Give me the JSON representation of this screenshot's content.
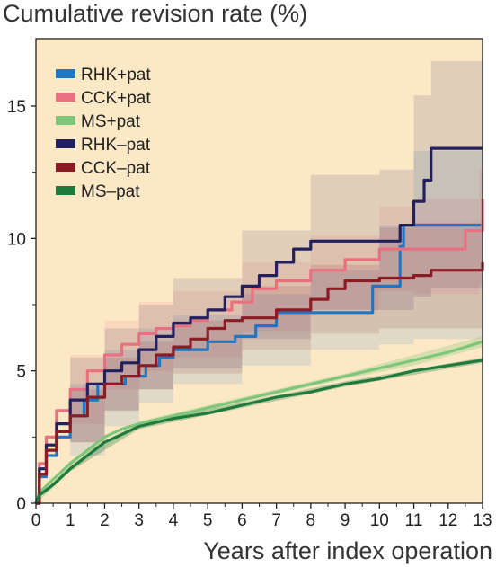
{
  "chart_data": {
    "type": "line",
    "title": "",
    "ylabel": "Cumulative revision rate (%)",
    "xlabel": "Years after index operation",
    "xlim": [
      0,
      13
    ],
    "ylim": [
      0,
      15
    ],
    "x_ticks": [
      "0",
      "1",
      "2",
      "3",
      "4",
      "5",
      "6",
      "7",
      "8",
      "9",
      "10",
      "11",
      "12",
      "13"
    ],
    "y_ticks": [
      "0",
      "5",
      "10",
      "15"
    ],
    "grid": false,
    "legend_position": "top-left",
    "background_color": "#fde8c6",
    "series": [
      {
        "name": "RHK+pat",
        "color": "#1f77c4",
        "step": true,
        "points": [
          [
            0,
            0
          ],
          [
            0.1,
            1
          ],
          [
            0.3,
            1.8
          ],
          [
            0.6,
            2.5
          ],
          [
            1.0,
            3.3
          ],
          [
            1.4,
            3.9
          ],
          [
            1.8,
            4.5
          ],
          [
            2.5,
            4.5
          ],
          [
            2.6,
            4.8
          ],
          [
            3.2,
            5.2
          ],
          [
            3.6,
            5.5
          ],
          [
            4.0,
            5.8
          ],
          [
            5.0,
            6.1
          ],
          [
            5.8,
            6.3
          ],
          [
            6.4,
            6.7
          ],
          [
            7.0,
            7.2
          ],
          [
            9.7,
            7.2
          ],
          [
            9.8,
            8.2
          ],
          [
            10.6,
            9.7
          ],
          [
            10.7,
            10.5
          ],
          [
            13,
            10.5
          ]
        ],
        "ci_lower": [
          [
            0,
            0
          ],
          [
            1,
            1.8
          ],
          [
            2,
            2.9
          ],
          [
            3,
            3.8
          ],
          [
            4,
            4.5
          ],
          [
            6,
            5.2
          ],
          [
            8,
            5.8
          ],
          [
            10,
            6.0
          ],
          [
            11,
            6.2
          ],
          [
            13,
            6.2
          ]
        ],
        "ci_upper": [
          [
            0,
            0
          ],
          [
            1,
            4.5
          ],
          [
            2,
            5.8
          ],
          [
            3,
            6.6
          ],
          [
            4,
            7.1
          ],
          [
            6,
            7.9
          ],
          [
            8,
            8.8
          ],
          [
            10,
            10.5
          ],
          [
            11,
            13.3
          ],
          [
            13,
            13.3
          ]
        ]
      },
      {
        "name": "CCK+pat",
        "color": "#e8707f",
        "step": true,
        "points": [
          [
            0,
            0
          ],
          [
            0.1,
            1.5
          ],
          [
            0.3,
            2.5
          ],
          [
            0.6,
            3.5
          ],
          [
            1.0,
            4.3
          ],
          [
            1.5,
            5.0
          ],
          [
            2.0,
            5.6
          ],
          [
            2.5,
            6.0
          ],
          [
            3.0,
            6.4
          ],
          [
            3.5,
            6.6
          ],
          [
            4.0,
            6.7
          ],
          [
            4.5,
            6.9
          ],
          [
            5.0,
            7.3
          ],
          [
            5.7,
            7.6
          ],
          [
            6.3,
            8.1
          ],
          [
            7.0,
            8.4
          ],
          [
            8.0,
            8.8
          ],
          [
            9.0,
            9.2
          ],
          [
            10.0,
            9.6
          ],
          [
            11.0,
            9.6
          ],
          [
            12.5,
            10.3
          ],
          [
            12.9,
            10.3
          ],
          [
            13,
            11.5
          ]
        ],
        "ci_lower": [
          [
            0,
            0
          ],
          [
            1,
            3.0
          ],
          [
            2,
            4.3
          ],
          [
            3,
            5.0
          ],
          [
            4,
            5.5
          ],
          [
            6,
            6.5
          ],
          [
            8,
            7.3
          ],
          [
            10,
            8.0
          ],
          [
            11,
            7.9
          ],
          [
            12.9,
            8.3
          ],
          [
            13,
            8.3
          ]
        ],
        "ci_upper": [
          [
            0,
            0
          ],
          [
            1,
            5.6
          ],
          [
            2,
            6.9
          ],
          [
            3,
            7.6
          ],
          [
            4,
            8.0
          ],
          [
            6,
            9.1
          ],
          [
            8,
            10.1
          ],
          [
            10,
            11.2
          ],
          [
            11,
            11.5
          ],
          [
            12.9,
            12.6
          ],
          [
            13,
            12.6
          ]
        ]
      },
      {
        "name": "MS+pat",
        "color": "#7dc67a",
        "step": false,
        "points": [
          [
            0,
            0
          ],
          [
            0.1,
            0.4
          ],
          [
            0.5,
            0.9
          ],
          [
            1.0,
            1.5
          ],
          [
            1.5,
            2.0
          ],
          [
            2.0,
            2.5
          ],
          [
            2.5,
            2.8
          ],
          [
            3.0,
            3.0
          ],
          [
            4.0,
            3.3
          ],
          [
            5.0,
            3.6
          ],
          [
            6.0,
            3.9
          ],
          [
            7.0,
            4.2
          ],
          [
            8.0,
            4.5
          ],
          [
            9.0,
            4.8
          ],
          [
            10.0,
            5.1
          ],
          [
            11.0,
            5.4
          ],
          [
            12.0,
            5.7
          ],
          [
            13.0,
            6.1
          ]
        ],
        "ci_lower": [
          [
            0,
            0
          ],
          [
            1,
            1.4
          ],
          [
            3,
            2.9
          ],
          [
            6,
            3.8
          ],
          [
            9,
            4.7
          ],
          [
            11,
            5.2
          ],
          [
            13,
            5.9
          ]
        ],
        "ci_upper": [
          [
            0,
            0
          ],
          [
            1,
            1.6
          ],
          [
            3,
            3.1
          ],
          [
            6,
            4.0
          ],
          [
            9,
            4.9
          ],
          [
            11,
            5.6
          ],
          [
            13,
            6.3
          ]
        ]
      },
      {
        "name": "RHK–pat",
        "color": "#23205f",
        "step": true,
        "points": [
          [
            0,
            0
          ],
          [
            0.1,
            1.3
          ],
          [
            0.3,
            2.2
          ],
          [
            0.6,
            3.0
          ],
          [
            1.0,
            3.9
          ],
          [
            1.5,
            4.5
          ],
          [
            2.0,
            5.0
          ],
          [
            2.5,
            5.3
          ],
          [
            3.0,
            5.8
          ],
          [
            3.5,
            6.3
          ],
          [
            4.0,
            6.8
          ],
          [
            4.5,
            7.0
          ],
          [
            5.0,
            7.3
          ],
          [
            5.5,
            7.8
          ],
          [
            6.0,
            8.2
          ],
          [
            6.5,
            8.6
          ],
          [
            7.0,
            9.1
          ],
          [
            7.5,
            9.6
          ],
          [
            8.0,
            9.9
          ],
          [
            10.0,
            9.9
          ],
          [
            10.6,
            10.5
          ],
          [
            11.0,
            11.4
          ],
          [
            11.3,
            12.2
          ],
          [
            11.5,
            13.4
          ],
          [
            13,
            13.4
          ]
        ],
        "ci_lower": [
          [
            0,
            0
          ],
          [
            1,
            2.3
          ],
          [
            2,
            3.5
          ],
          [
            3,
            4.3
          ],
          [
            4,
            5.1
          ],
          [
            6,
            6.2
          ],
          [
            8,
            7.3
          ],
          [
            10,
            7.3
          ],
          [
            11,
            7.8
          ],
          [
            11.5,
            8.1
          ],
          [
            13,
            8.1
          ]
        ],
        "ci_upper": [
          [
            0,
            0
          ],
          [
            1,
            5.5
          ],
          [
            2,
            6.6
          ],
          [
            3,
            7.5
          ],
          [
            4,
            8.5
          ],
          [
            6,
            10.3
          ],
          [
            8,
            12.4
          ],
          [
            10,
            12.6
          ],
          [
            11,
            15.4
          ],
          [
            11.5,
            16.7
          ],
          [
            13,
            16.7
          ]
        ]
      },
      {
        "name": "CCK–pat",
        "color": "#8b1c24",
        "step": true,
        "points": [
          [
            0,
            0
          ],
          [
            0.1,
            1.1
          ],
          [
            0.3,
            2.0
          ],
          [
            0.6,
            2.7
          ],
          [
            1.0,
            3.3
          ],
          [
            1.5,
            4.0
          ],
          [
            2.0,
            4.5
          ],
          [
            2.5,
            4.8
          ],
          [
            3.0,
            5.2
          ],
          [
            3.5,
            5.6
          ],
          [
            4.0,
            5.9
          ],
          [
            4.5,
            6.2
          ],
          [
            5.0,
            6.6
          ],
          [
            5.5,
            6.9
          ],
          [
            6.0,
            7.0
          ],
          [
            7.0,
            7.3
          ],
          [
            8.0,
            7.7
          ],
          [
            8.5,
            8.1
          ],
          [
            9.0,
            8.4
          ],
          [
            10.0,
            8.5
          ],
          [
            11.0,
            8.6
          ],
          [
            11.5,
            8.8
          ],
          [
            12.9,
            8.8
          ],
          [
            13,
            9.1
          ]
        ],
        "ci_lower": [
          [
            0,
            0
          ],
          [
            1,
            2.3
          ],
          [
            2,
            3.5
          ],
          [
            3,
            4.3
          ],
          [
            4,
            4.9
          ],
          [
            6,
            5.8
          ],
          [
            8,
            6.4
          ],
          [
            10,
            6.6
          ],
          [
            11,
            6.6
          ],
          [
            13,
            6.9
          ]
        ],
        "ci_upper": [
          [
            0,
            0
          ],
          [
            1,
            4.3
          ],
          [
            2,
            5.5
          ],
          [
            3,
            6.1
          ],
          [
            4,
            6.9
          ],
          [
            6,
            8.2
          ],
          [
            8,
            9.0
          ],
          [
            10,
            10.4
          ],
          [
            11,
            10.6
          ],
          [
            13,
            11.2
          ]
        ]
      },
      {
        "name": "MS–pat",
        "color": "#1e7a3d",
        "step": false,
        "points": [
          [
            0,
            0
          ],
          [
            0.1,
            0.3
          ],
          [
            0.5,
            0.7
          ],
          [
            1.0,
            1.3
          ],
          [
            1.5,
            1.8
          ],
          [
            2.0,
            2.3
          ],
          [
            2.5,
            2.6
          ],
          [
            3.0,
            2.9
          ],
          [
            4.0,
            3.2
          ],
          [
            5.0,
            3.4
          ],
          [
            6.0,
            3.7
          ],
          [
            7.0,
            4.0
          ],
          [
            8.0,
            4.2
          ],
          [
            9.0,
            4.5
          ],
          [
            10.0,
            4.7
          ],
          [
            11.0,
            5.0
          ],
          [
            12.0,
            5.2
          ],
          [
            13.0,
            5.4
          ]
        ],
        "ci_lower": [
          [
            0,
            0
          ],
          [
            1,
            1.2
          ],
          [
            3,
            2.8
          ],
          [
            6,
            3.6
          ],
          [
            9,
            4.4
          ],
          [
            13,
            5.3
          ]
        ],
        "ci_upper": [
          [
            0,
            0
          ],
          [
            1,
            1.4
          ],
          [
            3,
            3.0
          ],
          [
            6,
            3.8
          ],
          [
            9,
            4.6
          ],
          [
            13,
            5.5
          ]
        ]
      }
    ]
  }
}
